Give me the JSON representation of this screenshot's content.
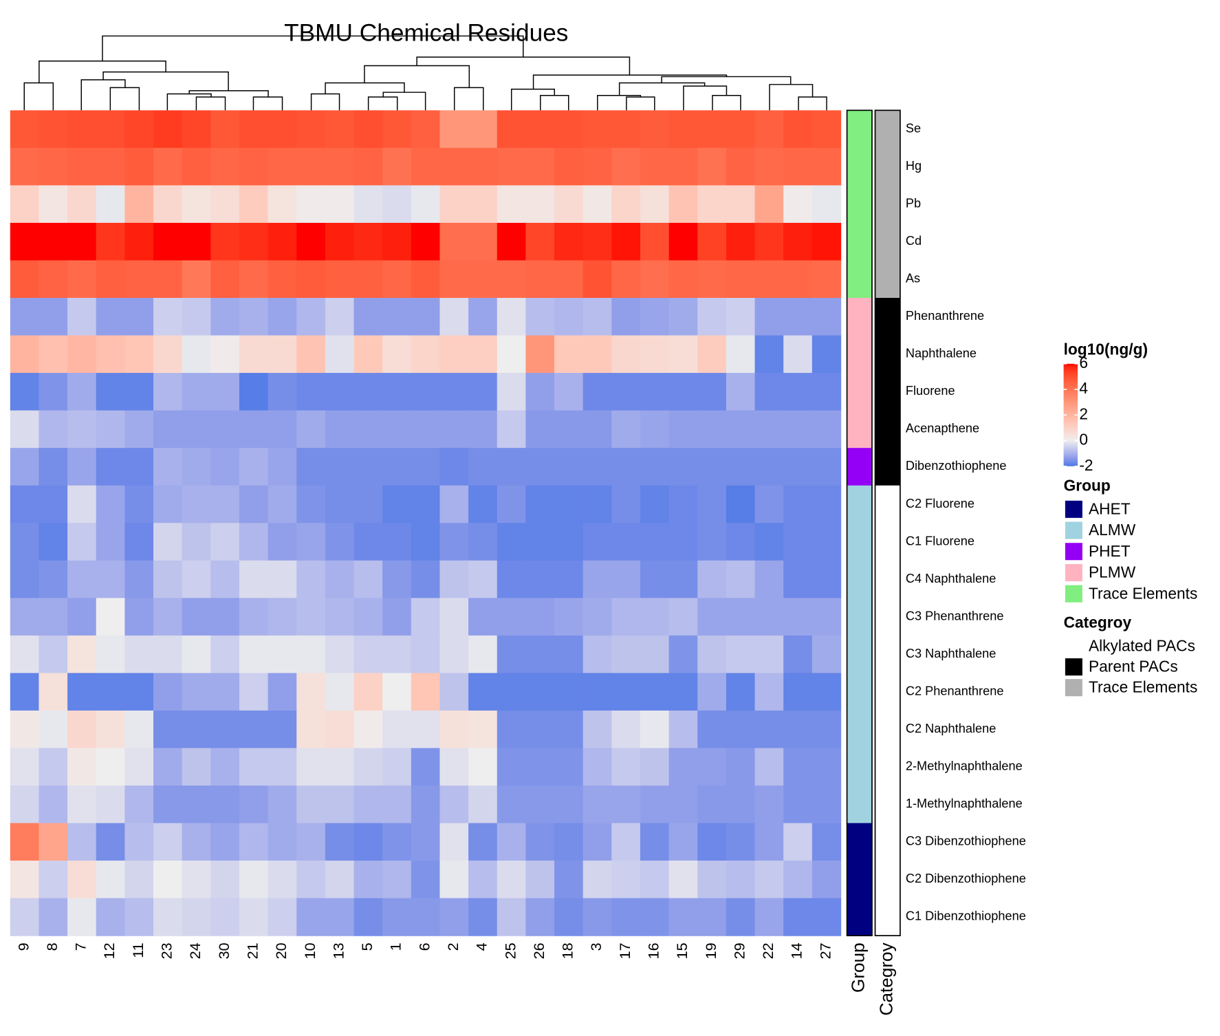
{
  "chart_data": {
    "type": "heatmap",
    "title": "TBMU Chemical Residues",
    "columns": [
      "9",
      "8",
      "7",
      "12",
      "11",
      "23",
      "24",
      "30",
      "21",
      "20",
      "10",
      "13",
      "5",
      "1",
      "6",
      "2",
      "4",
      "25",
      "26",
      "18",
      "3",
      "17",
      "16",
      "15",
      "19",
      "29",
      "22",
      "14",
      "27"
    ],
    "rows": [
      "Se",
      "Hg",
      "Pb",
      "Cd",
      "As",
      "Phenanthrene",
      "Naphthalene",
      "Fluorene",
      "Acenapthene",
      "Dibenzothiophene",
      "C2 Fluorene",
      "C1 Fluorene",
      "C4 Naphthalene",
      "C3 Phenanthrene",
      "C3 Naphthalene",
      "C2 Phenanthrene",
      "C2 Naphthalene",
      "2-Methylnaphthalene",
      "1-Methylnaphthalene",
      "C3 Dibenzothiophene",
      "C2 Dibenzothiophene",
      "C1 Dibenzothiophene"
    ],
    "values": [
      [
        4.8,
        4.9,
        5.0,
        5.0,
        5.2,
        5.4,
        5.2,
        4.8,
        5.0,
        5.0,
        4.9,
        4.8,
        5.0,
        4.8,
        4.6,
        3.0,
        3.0,
        4.9,
        4.9,
        4.9,
        4.8,
        4.8,
        4.7,
        4.8,
        4.8,
        4.8,
        4.6,
        4.9,
        4.8
      ],
      [
        4.3,
        4.4,
        4.5,
        4.5,
        4.7,
        4.3,
        4.6,
        4.4,
        4.5,
        4.4,
        4.4,
        4.4,
        4.5,
        4.1,
        4.4,
        4.4,
        4.4,
        4.3,
        4.3,
        4.6,
        4.5,
        4.2,
        4.4,
        4.4,
        4.1,
        4.5,
        4.3,
        4.4,
        4.4
      ],
      [
        1.0,
        0.3,
        0.8,
        -0.1,
        2.0,
        0.8,
        0.4,
        0.6,
        1.2,
        0.4,
        0.1,
        0.1,
        -0.2,
        -0.3,
        -0.1,
        1.0,
        1.0,
        0.3,
        0.3,
        0.7,
        0.2,
        0.9,
        0.5,
        1.5,
        0.9,
        0.9,
        2.5,
        0.1,
        -0.1
      ],
      [
        6,
        6,
        6,
        5.5,
        5.8,
        6,
        6,
        5.5,
        5.6,
        5.8,
        6,
        5.8,
        5.7,
        5.8,
        6,
        4.2,
        4.2,
        6,
        5.2,
        5.7,
        5.6,
        5.9,
        5.0,
        6,
        5.3,
        5.8,
        5.5,
        5.8,
        5.9
      ],
      [
        4.7,
        4.5,
        4.3,
        4.6,
        4.5,
        4.5,
        3.9,
        4.6,
        4.3,
        4.6,
        4.7,
        4.6,
        4.6,
        4.4,
        4.7,
        4.3,
        4.3,
        4.3,
        4.4,
        4.4,
        4.9,
        4.4,
        4.2,
        4.4,
        4.3,
        4.4,
        4.4,
        4.4,
        4.3
      ],
      [
        -1.3,
        -1.3,
        -0.6,
        -1.3,
        -1.3,
        -0.5,
        -0.6,
        -1.1,
        -1.0,
        -1.2,
        -0.9,
        -0.5,
        -1.3,
        -1.3,
        -1.3,
        -0.3,
        -1.2,
        -0.2,
        -0.8,
        -0.9,
        -0.8,
        -1.3,
        -1.2,
        -1.1,
        -0.6,
        -0.5,
        -1.3,
        -1.3,
        -1.3
      ],
      [
        2.0,
        1.6,
        1.9,
        1.6,
        1.4,
        0.8,
        -0.1,
        0.1,
        0.7,
        0.7,
        1.5,
        -0.2,
        1.3,
        0.6,
        0.9,
        1.1,
        1.1,
        0.0,
        3.0,
        1.3,
        1.3,
        0.8,
        0.7,
        0.6,
        1.2,
        -0.1,
        -1.8,
        -0.3,
        -1.8
      ],
      [
        -1.8,
        -1.5,
        -1.1,
        -1.8,
        -1.8,
        -0.9,
        -1.1,
        -1.1,
        -1.9,
        -1.6,
        -1.7,
        -1.7,
        -1.7,
        -1.7,
        -1.7,
        -1.7,
        -1.7,
        -0.3,
        -1.3,
        -1.0,
        -1.7,
        -1.7,
        -1.7,
        -1.7,
        -1.7,
        -1.0,
        -1.7,
        -1.7,
        -1.7
      ],
      [
        -0.3,
        -0.9,
        -0.8,
        -0.9,
        -1.1,
        -1.3,
        -1.3,
        -1.3,
        -1.3,
        -1.3,
        -1.1,
        -1.3,
        -1.3,
        -1.3,
        -1.3,
        -1.3,
        -1.3,
        -0.6,
        -1.4,
        -1.4,
        -1.4,
        -1.1,
        -1.2,
        -1.3,
        -1.3,
        -1.3,
        -1.3,
        -1.3,
        -1.3
      ],
      [
        -1.2,
        -1.6,
        -1.2,
        -1.7,
        -1.7,
        -1.0,
        -1.1,
        -1.2,
        -1.0,
        -1.2,
        -1.6,
        -1.6,
        -1.6,
        -1.6,
        -1.6,
        -1.7,
        -1.6,
        -1.6,
        -1.6,
        -1.6,
        -1.6,
        -1.6,
        -1.6,
        -1.6,
        -1.6,
        -1.6,
        -1.6,
        -1.6,
        -1.6
      ],
      [
        -1.7,
        -1.7,
        -0.3,
        -1.2,
        -1.6,
        -1.1,
        -1.0,
        -1.0,
        -1.3,
        -1.1,
        -1.5,
        -1.6,
        -1.6,
        -1.8,
        -1.8,
        -1.0,
        -1.8,
        -1.5,
        -1.8,
        -1.8,
        -1.8,
        -1.6,
        -1.8,
        -1.7,
        -1.6,
        -1.9,
        -1.5,
        -1.7,
        -1.7
      ],
      [
        -1.6,
        -1.8,
        -0.6,
        -1.2,
        -1.7,
        -0.4,
        -0.7,
        -0.5,
        -0.9,
        -1.3,
        -1.2,
        -1.5,
        -1.7,
        -1.7,
        -1.8,
        -1.5,
        -1.6,
        -1.8,
        -1.8,
        -1.8,
        -1.7,
        -1.7,
        -1.7,
        -1.7,
        -1.6,
        -1.7,
        -1.8,
        -1.7,
        -1.7
      ],
      [
        -1.6,
        -1.5,
        -1.0,
        -1.0,
        -1.4,
        -0.7,
        -0.5,
        -0.8,
        -0.3,
        -0.3,
        -0.8,
        -1.0,
        -0.8,
        -1.4,
        -1.6,
        -0.7,
        -0.6,
        -1.7,
        -1.7,
        -1.7,
        -1.2,
        -1.2,
        -1.6,
        -1.6,
        -0.9,
        -0.8,
        -1.2,
        -1.7,
        -1.7
      ],
      [
        -1.1,
        -1.1,
        -1.3,
        0.0,
        -1.3,
        -1.0,
        -1.3,
        -1.3,
        -1.0,
        -0.9,
        -0.8,
        -0.9,
        -1.0,
        -1.3,
        -0.6,
        -0.3,
        -1.3,
        -1.3,
        -1.3,
        -1.2,
        -1.1,
        -0.9,
        -0.9,
        -0.8,
        -1.2,
        -1.2,
        -1.2,
        -1.2,
        -1.2
      ],
      [
        -0.2,
        -0.6,
        0.4,
        -0.1,
        -0.3,
        -0.3,
        -0.1,
        -0.5,
        -0.1,
        -0.1,
        -0.1,
        -0.3,
        -0.5,
        -0.5,
        -0.6,
        -0.3,
        -0.1,
        -1.6,
        -1.6,
        -1.6,
        -0.8,
        -0.7,
        -0.7,
        -1.5,
        -0.7,
        -0.6,
        -0.6,
        -1.6,
        -1.1
      ],
      [
        -1.8,
        0.5,
        -1.8,
        -1.8,
        -1.8,
        -1.3,
        -1.1,
        -1.1,
        -0.5,
        -1.3,
        0.5,
        -0.1,
        1.0,
        0.0,
        1.4,
        -0.7,
        -1.8,
        -1.8,
        -1.8,
        -1.8,
        -1.8,
        -1.8,
        -1.8,
        -1.8,
        -1.1,
        -1.8,
        -0.9,
        -1.8,
        -1.8
      ],
      [
        0.2,
        -0.1,
        0.8,
        0.5,
        -0.1,
        -1.6,
        -1.6,
        -1.6,
        -1.6,
        -1.6,
        0.5,
        0.6,
        0.1,
        -0.2,
        -0.2,
        0.5,
        0.4,
        -1.6,
        -1.6,
        -1.6,
        -0.7,
        -0.3,
        -0.1,
        -0.8,
        -1.6,
        -1.6,
        -1.6,
        -1.6,
        -1.6
      ],
      [
        -0.2,
        -0.6,
        0.2,
        0.0,
        -0.2,
        -1.1,
        -0.7,
        -1.0,
        -0.6,
        -0.6,
        -0.2,
        -0.2,
        -0.4,
        -0.5,
        -1.5,
        -0.2,
        0.0,
        -1.5,
        -1.5,
        -1.5,
        -0.9,
        -0.6,
        -0.7,
        -1.3,
        -1.3,
        -1.4,
        -0.8,
        -1.5,
        -1.5
      ],
      [
        -0.4,
        -0.9,
        -0.2,
        -0.3,
        -0.9,
        -1.4,
        -1.4,
        -1.4,
        -1.3,
        -1.1,
        -0.7,
        -0.7,
        -0.9,
        -0.9,
        -1.4,
        -0.8,
        -0.4,
        -1.4,
        -1.4,
        -1.4,
        -1.2,
        -1.2,
        -1.3,
        -1.3,
        -1.4,
        -1.4,
        -1.3,
        -1.5,
        -1.5
      ],
      [
        3.8,
        2.5,
        -0.8,
        -1.6,
        -0.8,
        -0.5,
        -1.0,
        -1.2,
        -0.9,
        -1.1,
        -1.0,
        -1.6,
        -1.7,
        -1.5,
        -1.4,
        -0.2,
        -1.6,
        -1.0,
        -1.5,
        -1.6,
        -1.3,
        -0.6,
        -1.6,
        -1.2,
        -1.7,
        -1.6,
        -1.3,
        -0.5,
        -1.6
      ],
      [
        0.3,
        -0.5,
        0.6,
        -0.1,
        -0.4,
        0.0,
        -0.2,
        -0.4,
        -0.1,
        -0.3,
        -0.6,
        -0.4,
        -1.0,
        -0.9,
        -1.5,
        -0.1,
        -0.8,
        -0.3,
        -0.7,
        -1.5,
        -0.4,
        -0.5,
        -0.6,
        -0.2,
        -0.7,
        -0.8,
        -0.6,
        -0.9,
        -1.3
      ],
      [
        -0.5,
        -1.0,
        -0.1,
        -1.0,
        -0.8,
        -0.3,
        -0.4,
        -0.5,
        -0.3,
        -0.5,
        -1.2,
        -1.2,
        -1.6,
        -1.4,
        -1.4,
        -1.3,
        -1.6,
        -0.7,
        -1.3,
        -1.6,
        -1.4,
        -1.5,
        -1.5,
        -1.3,
        -1.3,
        -1.6,
        -1.2,
        -1.7,
        -1.7
      ]
    ],
    "colorscale": [
      {
        "value": -2,
        "color": "#4a78e6"
      },
      {
        "value": 0,
        "color": "#eeeeee"
      },
      {
        "value": 6,
        "color": "#ff0000"
      }
    ],
    "legend_title": "log10(ng/g)",
    "legend_ticks": [
      6,
      4,
      2,
      0,
      -2
    ],
    "annotations": [
      {
        "name": "Group",
        "levels": [
          {
            "name": "AHET",
            "color": "#000080"
          },
          {
            "name": "ALMW",
            "color": "#a0d2e0"
          },
          {
            "name": "PHET",
            "color": "#9400f5"
          },
          {
            "name": "PLMW",
            "color": "#ffb3c1"
          },
          {
            "name": "Trace Elements",
            "color": "#80ee80"
          }
        ],
        "values": [
          "Trace Elements",
          "Trace Elements",
          "Trace Elements",
          "Trace Elements",
          "Trace Elements",
          "PLMW",
          "PLMW",
          "PLMW",
          "PLMW",
          "PHET",
          "ALMW",
          "ALMW",
          "ALMW",
          "ALMW",
          "ALMW",
          "ALMW",
          "ALMW",
          "ALMW",
          "ALMW",
          "AHET",
          "AHET",
          "AHET"
        ]
      },
      {
        "name": "Categroy",
        "levels": [
          {
            "name": "Alkylated PACs",
            "color": "#ffffff"
          },
          {
            "name": "Parent PACs",
            "color": "#000000"
          },
          {
            "name": "Trace Elements",
            "color": "#b0b0b0"
          }
        ],
        "values": [
          "Trace Elements",
          "Trace Elements",
          "Trace Elements",
          "Trace Elements",
          "Trace Elements",
          "Parent PACs",
          "Parent PACs",
          "Parent PACs",
          "Parent PACs",
          "Parent PACs",
          "Alkylated PACs",
          "Alkylated PACs",
          "Alkylated PACs",
          "Alkylated PACs",
          "Alkylated PACs",
          "Alkylated PACs",
          "Alkylated PACs",
          "Alkylated PACs",
          "Alkylated PACs",
          "Alkylated PACs",
          "Alkylated PACs",
          "Alkylated PACs"
        ]
      }
    ]
  }
}
